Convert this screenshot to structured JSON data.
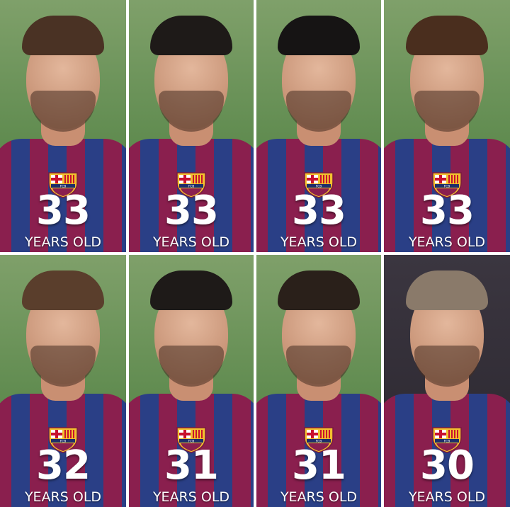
{
  "colors": {
    "garnet": "#8a1f4e",
    "blue": "#2a3f86",
    "crest_gold": "#f2c12e",
    "text": "#ffffff"
  },
  "tiles": [
    {
      "age": "33",
      "label": "YEARS OLD",
      "crest": "FCB"
    },
    {
      "age": "33",
      "label": "YEARS OLD",
      "crest": "FCB"
    },
    {
      "age": "33",
      "label": "YEARS OLD",
      "crest": "FCB"
    },
    {
      "age": "33",
      "label": "YEARS OLD",
      "crest": "FCB"
    },
    {
      "age": "32",
      "label": "YEARS OLD",
      "crest": "FCB"
    },
    {
      "age": "31",
      "label": "YEARS OLD",
      "crest": "FCB"
    },
    {
      "age": "31",
      "label": "YEARS OLD",
      "crest": "FCB"
    },
    {
      "age": "30",
      "label": "YEARS OLD",
      "crest": "FCB"
    }
  ]
}
